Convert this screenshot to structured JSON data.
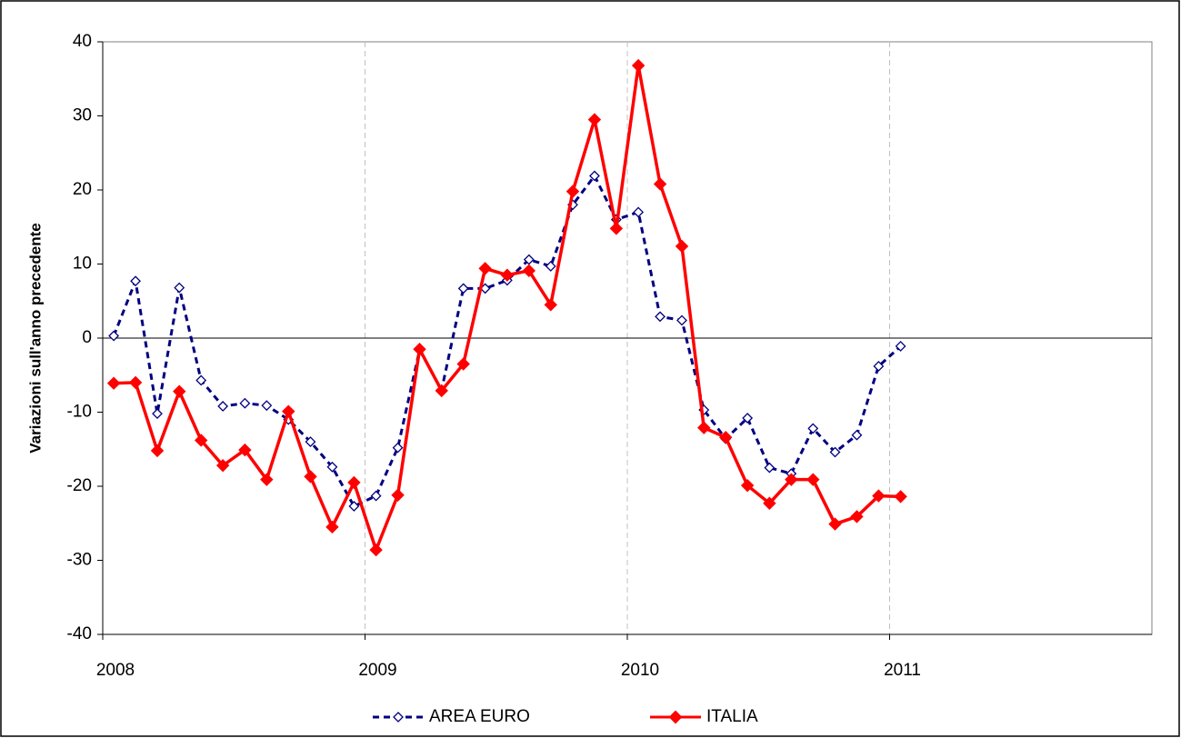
{
  "chart_data": {
    "type": "line",
    "y_label": "Variazioni sull'anno precedente",
    "x": [
      2008.042,
      2008.125,
      2008.208,
      2008.292,
      2008.375,
      2008.458,
      2008.542,
      2008.625,
      2008.708,
      2008.792,
      2008.875,
      2008.958,
      2009.042,
      2009.125,
      2009.208,
      2009.292,
      2009.375,
      2009.458,
      2009.542,
      2009.625,
      2009.708,
      2009.792,
      2009.875,
      2009.958,
      2010.042,
      2010.125,
      2010.208,
      2010.292,
      2010.375,
      2010.458,
      2010.542,
      2010.625,
      2010.708,
      2010.792,
      2010.875,
      2010.958,
      2011.042
    ],
    "series": [
      {
        "name": "AREA EURO",
        "color": "#000080",
        "dashed": true,
        "marker": "hollow-diamond",
        "values": [
          0.3,
          7.7,
          -10.2,
          6.8,
          -5.7,
          -9.2,
          -8.8,
          -9.1,
          -11,
          -14,
          -17.4,
          -22.7,
          -21.3,
          -14.8,
          -1.6,
          -7,
          6.7,
          6.7,
          7.8,
          10.6,
          9.7,
          18,
          21.9,
          16,
          17,
          2.9,
          2.4,
          -9.7,
          -13.6,
          -10.8,
          -17.5,
          -18.3,
          -12.2,
          -15.4,
          -13.1,
          -3.8,
          -1.1
        ]
      },
      {
        "name": "ITALIA",
        "color": "#ff0000",
        "dashed": false,
        "marker": "filled-diamond",
        "values": [
          -6.1,
          -6,
          -15.2,
          -7.2,
          -13.8,
          -17.2,
          -15.1,
          -19.1,
          -9.9,
          -18.7,
          -25.5,
          -19.5,
          -28.6,
          -21.2,
          -1.5,
          -7.1,
          -3.5,
          9.4,
          8.5,
          9.1,
          4.5,
          19.8,
          29.5,
          14.8,
          36.8,
          20.8,
          12.4,
          -12.1,
          -13.4,
          -19.9,
          -22.3,
          -19.1,
          -19.1,
          -25.1,
          -24.1,
          -21.3,
          -21.4
        ]
      }
    ],
    "xlim": [
      2008,
      2012
    ],
    "xticks": [
      2008,
      2009,
      2010,
      2011
    ],
    "ylim": [
      -40,
      40
    ],
    "yticks": [
      -40,
      -30,
      -20,
      -10,
      0,
      10,
      20,
      30,
      40
    ],
    "x_grid": true,
    "legend": "bottom"
  }
}
